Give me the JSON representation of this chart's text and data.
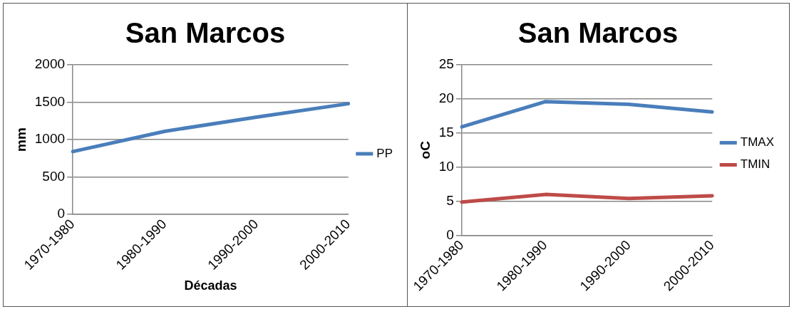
{
  "chart_data": [
    {
      "type": "line",
      "title": "San Marcos",
      "xlabel": "Décadas",
      "ylabel": "mm",
      "categories": [
        "1970-1980",
        "1980-1990",
        "1990-2000",
        "2000-2010"
      ],
      "series": [
        {
          "name": "PP",
          "color": "#4a7ebb",
          "values": [
            840,
            1110,
            1300,
            1480
          ]
        }
      ],
      "ylim": [
        0,
        2000
      ],
      "yticks": [
        0,
        500,
        1000,
        1500,
        2000
      ],
      "grid": "y",
      "legend": "right",
      "marker": "none"
    },
    {
      "type": "line",
      "title": "San Marcos",
      "ylabel": "oC",
      "categories": [
        "1970-1980",
        "1980-1990",
        "1990-2000",
        "2000-2010"
      ],
      "series": [
        {
          "name": "TMAX",
          "color": "#4a7ebb",
          "values": [
            15.9,
            19.6,
            19.2,
            18.1
          ]
        },
        {
          "name": "TMIN",
          "color": "#be4b48",
          "values": [
            4.9,
            6.0,
            5.4,
            5.8
          ]
        }
      ],
      "ylim": [
        0,
        25
      ],
      "yticks": [
        0,
        5,
        10,
        15,
        20,
        25
      ],
      "grid": "y",
      "legend": "right",
      "marker": "none"
    }
  ]
}
